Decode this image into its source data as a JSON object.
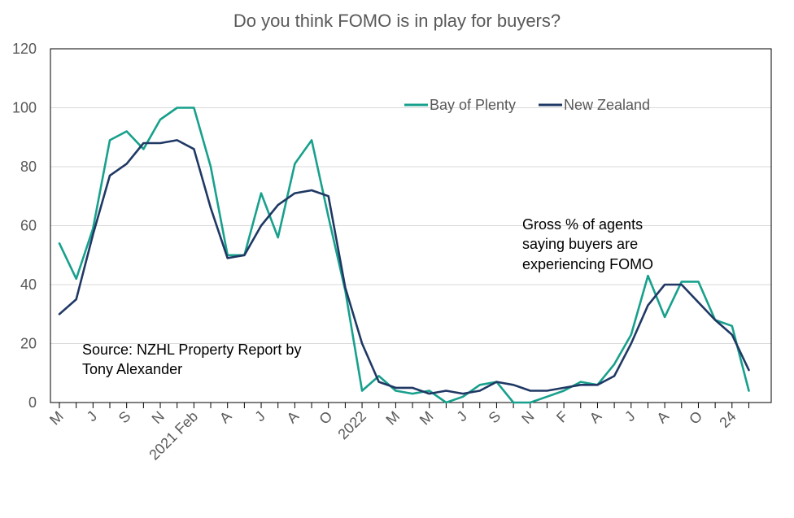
{
  "chart_data": {
    "type": "line",
    "title": "Do you think FOMO is in play for buyers?",
    "xlabel": "",
    "ylabel": "",
    "ylim": [
      0,
      120
    ],
    "yticks": [
      0,
      20,
      40,
      60,
      80,
      100,
      120
    ],
    "grid": true,
    "legend_position": "top-right",
    "x_tick_labels": [
      {
        "index": 0,
        "label": "M"
      },
      {
        "index": 2,
        "label": "J"
      },
      {
        "index": 4,
        "label": "S"
      },
      {
        "index": 6,
        "label": "N"
      },
      {
        "index": 8,
        "label": "2021 Feb"
      },
      {
        "index": 10,
        "label": "A"
      },
      {
        "index": 12,
        "label": "J"
      },
      {
        "index": 14,
        "label": "A"
      },
      {
        "index": 16,
        "label": "O"
      },
      {
        "index": 18,
        "label": "2022"
      },
      {
        "index": 20,
        "label": "M"
      },
      {
        "index": 22,
        "label": "M"
      },
      {
        "index": 24,
        "label": "J"
      },
      {
        "index": 26,
        "label": "S"
      },
      {
        "index": 28,
        "label": "N"
      },
      {
        "index": 30,
        "label": "F"
      },
      {
        "index": 32,
        "label": "A"
      },
      {
        "index": 34,
        "label": "J"
      },
      {
        "index": 36,
        "label": "A"
      },
      {
        "index": 38,
        "label": "O"
      },
      {
        "index": 40,
        "label": "24"
      }
    ],
    "num_points": 42,
    "series": [
      {
        "name": "Bay of Plenty",
        "color": "#17A08C",
        "values": [
          54,
          42,
          59,
          89,
          92,
          86,
          96,
          100,
          100,
          80,
          50,
          50,
          71,
          56,
          81,
          89,
          63,
          38,
          4,
          9,
          4,
          3,
          4,
          0,
          2,
          6,
          7,
          0,
          0,
          2,
          4,
          7,
          6,
          13,
          23,
          43,
          29,
          41,
          41,
          28,
          26,
          4
        ]
      },
      {
        "name": "New Zealand",
        "color": "#1F3864",
        "values": [
          30,
          35,
          57,
          77,
          81,
          88,
          88,
          89,
          86,
          66,
          49,
          50,
          60,
          67,
          71,
          72,
          70,
          39,
          20,
          7,
          5,
          5,
          3,
          4,
          3,
          4,
          7,
          6,
          4,
          4,
          5,
          6,
          6,
          9,
          20,
          33,
          40,
          40,
          34,
          28,
          23,
          11
        ]
      }
    ],
    "annotations": [
      {
        "id": "source",
        "lines": [
          "Source: NZHL Property Report by",
          "Tony Alexander"
        ]
      },
      {
        "id": "gross",
        "lines": [
          "Gross % of agents",
          "saying buyers are",
          "experiencing  FOMO"
        ]
      }
    ]
  }
}
